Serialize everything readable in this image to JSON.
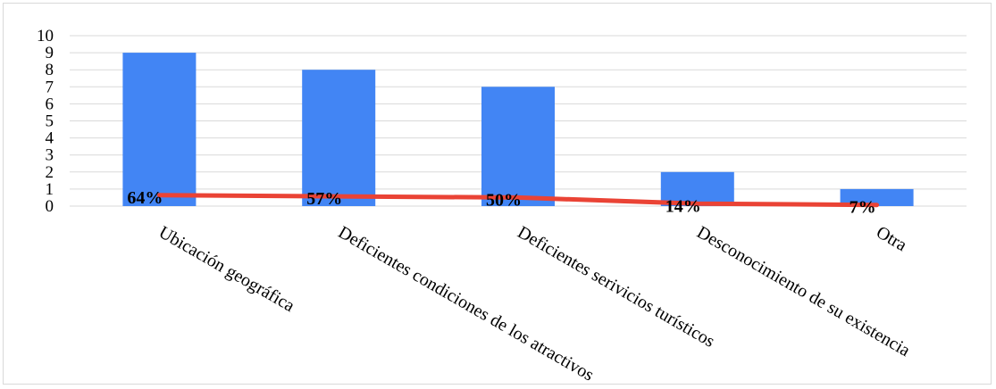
{
  "chart_data": {
    "type": "bar",
    "categories": [
      "Ubicación geográfica",
      "Deficientes condiciones de los atractivos",
      "Deficientes serivicios turísticos",
      "Desconocimiento de su existencia",
      "Otra"
    ],
    "series": [
      {
        "type": "bar",
        "values": [
          9,
          8,
          7,
          2,
          1
        ],
        "color": "#4285f4"
      },
      {
        "type": "line",
        "values": [
          0.64,
          0.57,
          0.5,
          0.14,
          0.07
        ],
        "labels": [
          "64%",
          "57%",
          "50%",
          "14%",
          "7%"
        ],
        "color": "#ea4335"
      }
    ],
    "y_ticks": [
      "0",
      "1",
      "2",
      "3",
      "4",
      "5",
      "6",
      "7",
      "8",
      "9",
      "10"
    ],
    "ylim": [
      0,
      10
    ],
    "grid": true,
    "legend": "none"
  }
}
